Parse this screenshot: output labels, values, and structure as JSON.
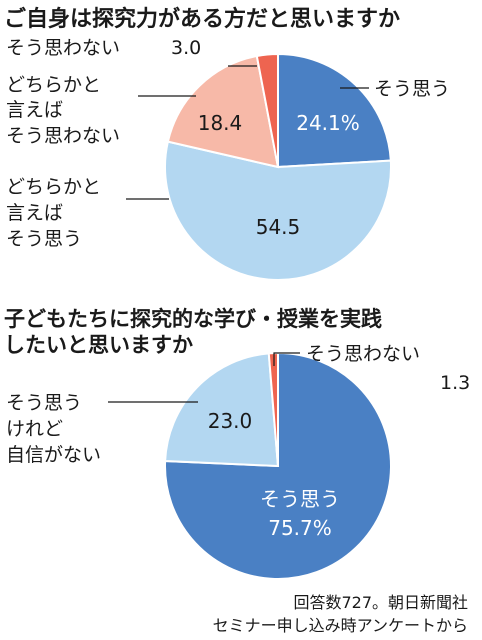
{
  "colors": {
    "dark_blue": "#4a80c4",
    "light_blue": "#b3d7f1",
    "salmon": "#f7b9a8",
    "red": "#ee6450",
    "text": "#1a1a1a",
    "white_text": "#ffffff"
  },
  "chart_data": [
    {
      "type": "pie",
      "title": "ご自身は探究力がある方だと思いますか",
      "slices": [
        {
          "label": "そう思う",
          "value": 24.1,
          "value_text": "24.1%",
          "color": "#4a80c4"
        },
        {
          "label": "どちらかと言えばそう思う",
          "value": 54.5,
          "value_text": "54.5",
          "color": "#b3d7f1"
        },
        {
          "label": "どちらかと言えばそう思わない",
          "value": 18.4,
          "value_text": "18.4",
          "color": "#f7b9a8"
        },
        {
          "label": "そう思わない",
          "value": 3.0,
          "value_text": "3.0",
          "color": "#ee6450"
        }
      ]
    },
    {
      "type": "pie",
      "title": "子どもたちに探究的な学び・授業を実践したいと思いますか",
      "slices": [
        {
          "label": "そう思う",
          "value": 75.7,
          "value_text": "75.7%",
          "color": "#4a80c4"
        },
        {
          "label": "そう思うけれど自信がない",
          "value": 23.0,
          "value_text": "23.0",
          "color": "#b3d7f1"
        },
        {
          "label": "そう思わない",
          "value": 1.3,
          "value_text": "1.3",
          "color": "#ee6450"
        }
      ]
    }
  ],
  "labels": {
    "c1_title": "ご自身は探究力がある方だと思いますか",
    "c1_sou_omou": "そう思う",
    "c1_dochira_omou_1": "どちらかと",
    "c1_dochira_omou_2": "言えば",
    "c1_dochira_omou_3": "そう思う",
    "c1_dochira_omowanai_1": "どちらかと",
    "c1_dochira_omowanai_2": "言えば",
    "c1_dochira_omowanai_3": "そう思わない",
    "c1_omowanai": "そう思わない",
    "c1_omowanai_value": "3.0",
    "c1_v1": "24.1%",
    "c1_v2": "54.5",
    "c1_v3": "18.4",
    "c2_title_1": "子どもたちに探究的な学び・授業を実践",
    "c2_title_2": "したいと思いますか",
    "c2_omowanai": "そう思わない",
    "c2_omowanai_value": "1.3",
    "c2_jishin_1": "そう思う",
    "c2_jishin_2": "けれど",
    "c2_jishin_3": "自信がない",
    "c2_v2": "23.0",
    "c2_inner_label": "そう思う",
    "c2_v1": "75.7%",
    "source_1": "回答数727。朝日新聞社",
    "source_2": "セミナー申し込み時アンケートから"
  }
}
